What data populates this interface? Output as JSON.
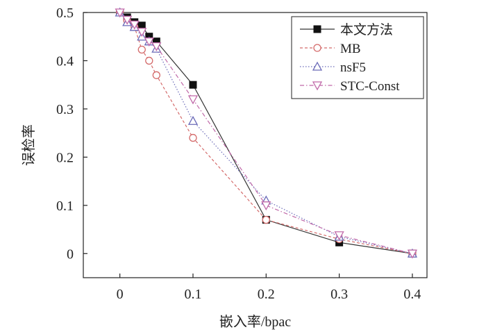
{
  "chart_data": {
    "type": "line",
    "title": "",
    "xlabel": "嵌入率/bpac",
    "ylabel": "误检率",
    "xlim": [
      -0.05,
      0.42
    ],
    "ylim": [
      -0.05,
      0.5
    ],
    "xticks": [
      0,
      0.1,
      0.2,
      0.3,
      0.4
    ],
    "yticks": [
      0,
      0.1,
      0.2,
      0.3,
      0.4,
      0.5
    ],
    "xtick_labels": [
      "0",
      "0.1",
      "0.2",
      "0.3",
      "0.4"
    ],
    "ytick_labels": [
      "0",
      "0.1",
      "0.2",
      "0.3",
      "0.4",
      "0.5"
    ],
    "grid": false,
    "legend_position": "top-right",
    "series": [
      {
        "name": "本文方法",
        "color": "#333333",
        "marker": "square-filled",
        "line_style": "solid",
        "x": [
          0,
          0.01,
          0.02,
          0.03,
          0.04,
          0.05,
          0.1,
          0.2,
          0.3,
          0.4
        ],
        "y": [
          0.5,
          0.49,
          0.48,
          0.473,
          0.45,
          0.44,
          0.35,
          0.07,
          0.023,
          0.0
        ]
      },
      {
        "name": "MB",
        "color": "#d46a6a",
        "marker": "circle-open",
        "line_style": "dashed",
        "x": [
          0,
          0.01,
          0.02,
          0.03,
          0.04,
          0.05,
          0.1,
          0.2,
          0.3,
          0.4
        ],
        "y": [
          0.5,
          0.483,
          0.47,
          0.423,
          0.4,
          0.37,
          0.24,
          0.07,
          0.03,
          0.0
        ]
      },
      {
        "name": "nsF5",
        "color": "#6a6ab8",
        "marker": "triangle-up-open",
        "line_style": "dotted",
        "x": [
          0,
          0.01,
          0.02,
          0.03,
          0.04,
          0.05,
          0.1,
          0.2,
          0.3,
          0.4
        ],
        "y": [
          0.5,
          0.48,
          0.47,
          0.45,
          0.44,
          0.425,
          0.275,
          0.11,
          0.035,
          0.0
        ]
      },
      {
        "name": "STC-Const",
        "color": "#c068a8",
        "marker": "triangle-down-open",
        "line_style": "dashdot",
        "x": [
          0,
          0.01,
          0.02,
          0.03,
          0.04,
          0.05,
          0.1,
          0.2,
          0.3,
          0.4
        ],
        "y": [
          0.5,
          0.485,
          0.475,
          0.46,
          0.44,
          0.43,
          0.32,
          0.1,
          0.038,
          0.0
        ]
      }
    ]
  }
}
